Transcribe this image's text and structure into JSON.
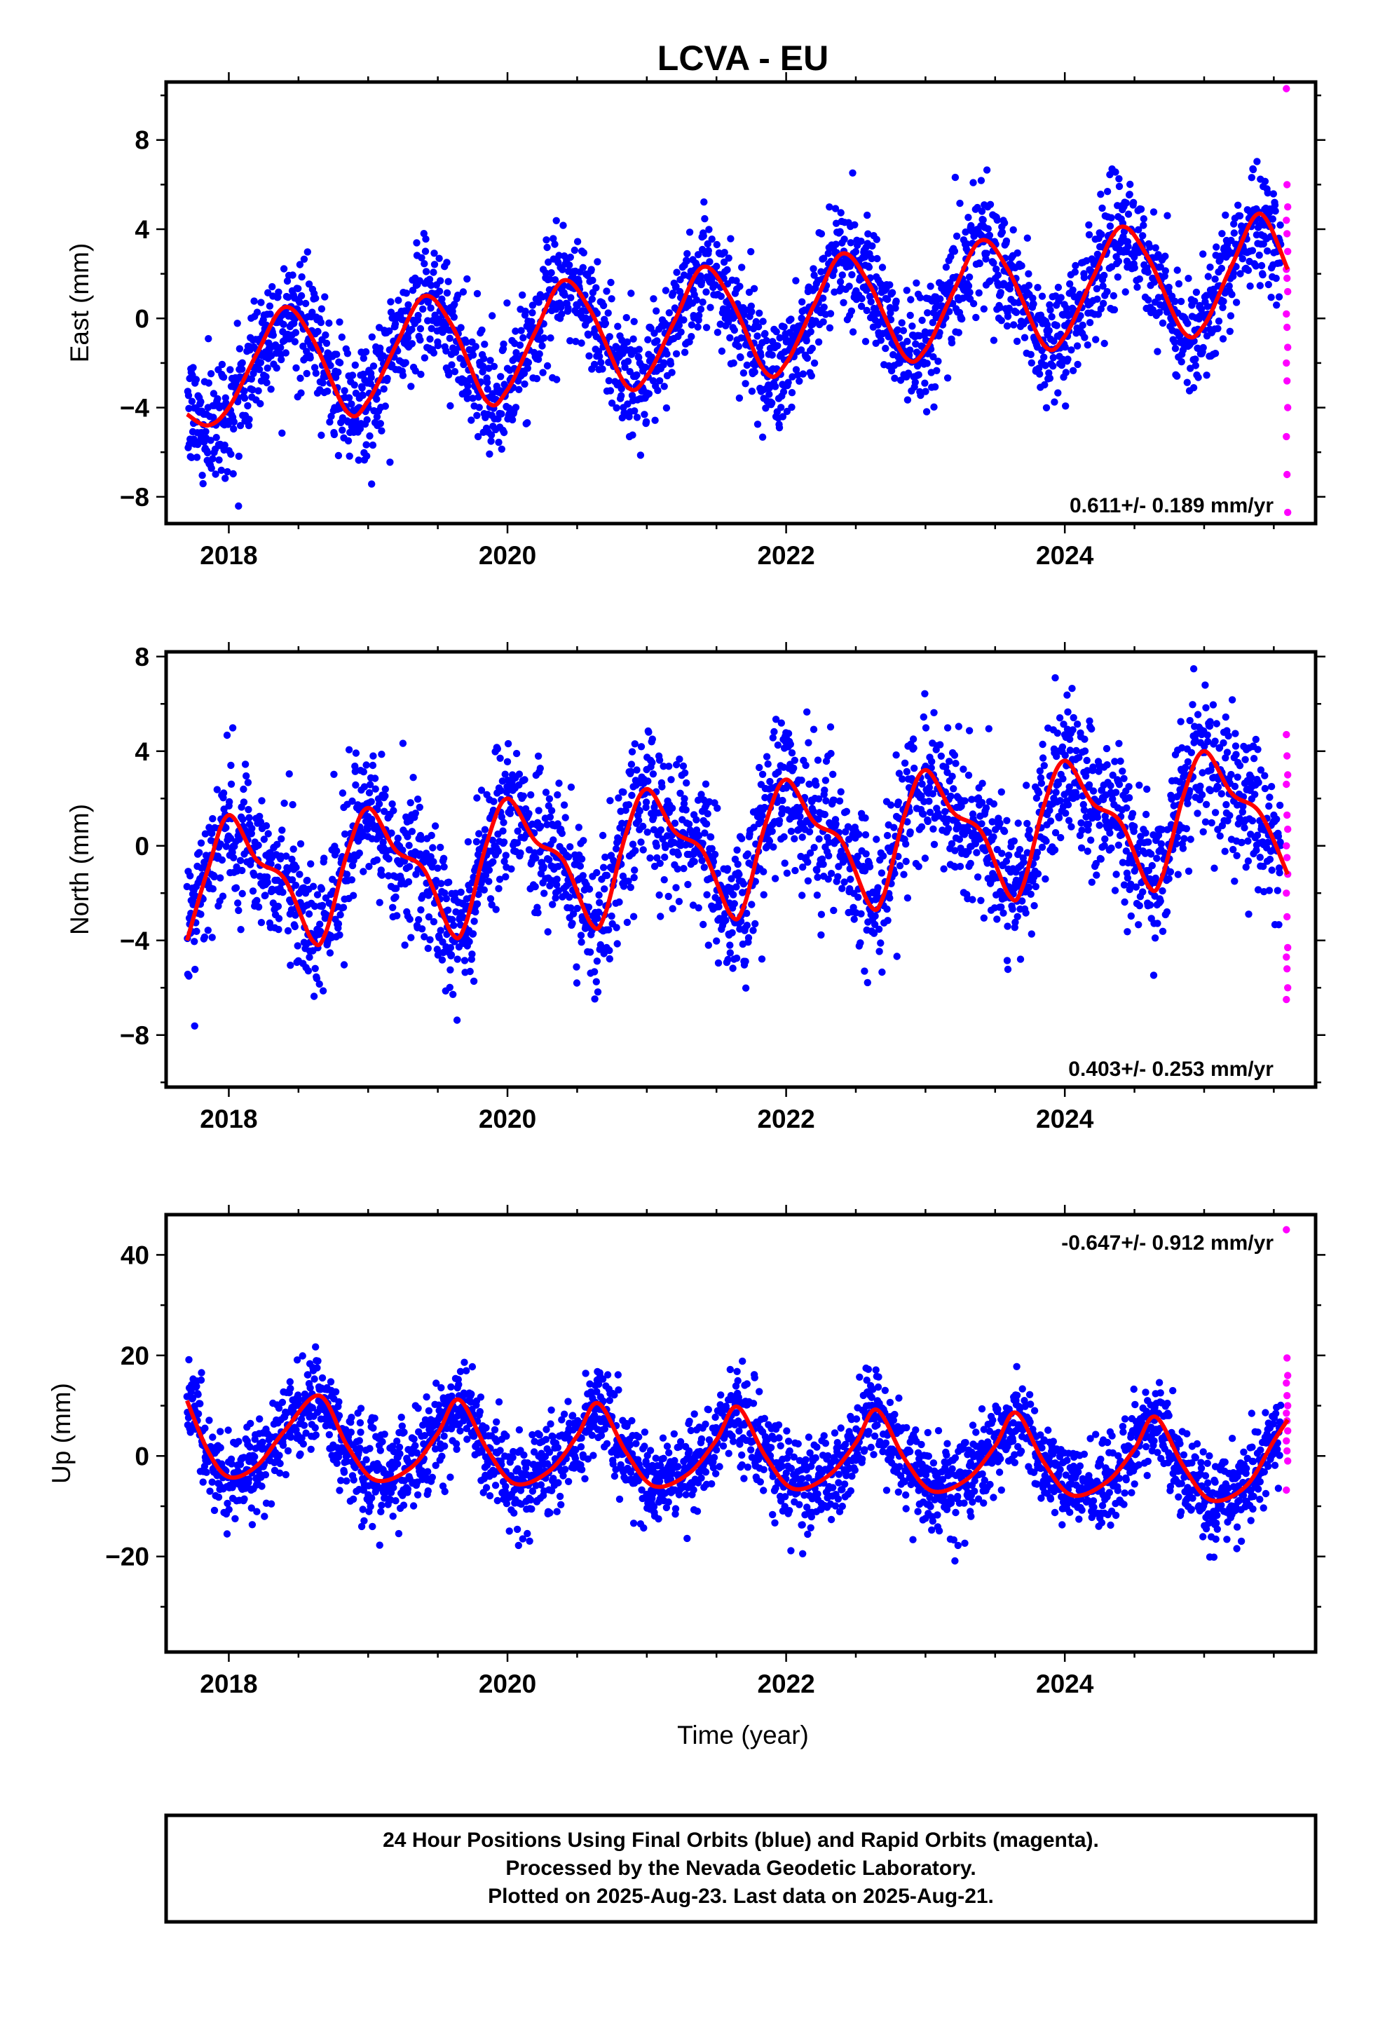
{
  "title": "LCVA - EU",
  "colors": {
    "final": "#0000ff",
    "rapid": "#ff00ff",
    "model": "#ff0000",
    "frame": "#000000"
  },
  "xaxis": {
    "label": "Time (year)",
    "range": [
      2017.55,
      2025.8
    ],
    "ticks": [
      2018,
      2020,
      2022,
      2024
    ],
    "tick_labels": [
      "2018",
      "2020",
      "2022",
      "2024"
    ]
  },
  "footer": {
    "line1": "24 Hour Positions Using Final Orbits (blue) and Rapid Orbits (magenta).",
    "line2": "Processed by the Nevada Geodetic Laboratory.",
    "line3": "Plotted on 2025-Aug-23. Last data on 2025-Aug-21."
  },
  "chart_data": [
    {
      "type": "scatter",
      "ylabel": "East (mm)",
      "ylim": [
        -9.2,
        10.6
      ],
      "yticks": [
        -8,
        -4,
        0,
        4,
        8
      ],
      "ytick_labels": [
        "−8",
        "−4",
        "0",
        "4",
        "8"
      ],
      "rate": "0.611+/- 0.189 mm/yr",
      "rate_position": "bottom-right",
      "final_x_range": [
        2017.7,
        2025.55
      ],
      "rapid_x_range": [
        2025.55,
        2025.64
      ],
      "model": {
        "description": "trend + annual signal",
        "x": [
          2017.7,
          2017.85,
          2018.0,
          2018.2,
          2018.4,
          2018.6,
          2018.85,
          2019.0,
          2019.2,
          2019.4,
          2019.6,
          2019.85,
          2020.0,
          2020.2,
          2020.4,
          2020.6,
          2020.85,
          2021.0,
          2021.2,
          2021.4,
          2021.6,
          2021.85,
          2022.0,
          2022.2,
          2022.4,
          2022.6,
          2022.85,
          2023.0,
          2023.2,
          2023.4,
          2023.6,
          2023.85,
          2024.0,
          2024.2,
          2024.4,
          2024.6,
          2024.85,
          2025.0,
          2025.2,
          2025.4,
          2025.6
        ],
        "y": [
          -4.3,
          -4.8,
          -4.0,
          -1.6,
          0.5,
          -0.9,
          -4.2,
          -3.7,
          -1.2,
          1.0,
          -0.3,
          -3.7,
          -3.2,
          -0.6,
          1.7,
          0.3,
          -3.0,
          -2.6,
          -0.1,
          2.3,
          0.9,
          -2.4,
          -2.0,
          0.6,
          2.9,
          1.5,
          -1.7,
          -1.4,
          1.2,
          3.5,
          2.1,
          -1.2,
          -0.8,
          1.8,
          4.1,
          2.7,
          -0.6,
          -0.3,
          2.4,
          4.7,
          2.2
        ]
      },
      "annual": {
        "amplitude": 2.6,
        "peak_phase": 0.4
      },
      "trend": {
        "y2017_7": -2.0,
        "slope": 0.611
      },
      "scatter_noise": 1.3,
      "rapid_points": [
        10.3,
        6.0,
        5.0,
        4.4,
        3.8,
        3.0,
        2.2,
        1.8,
        1.2,
        0.2,
        -0.4,
        -1.3,
        -2.0,
        -2.8,
        -4.0,
        -5.3,
        -7.0,
        -8.7
      ]
    },
    {
      "type": "scatter",
      "ylabel": "North (mm)",
      "ylim": [
        -10.2,
        8.2
      ],
      "yticks": [
        -8,
        -4,
        0,
        4,
        8
      ],
      "ytick_labels": [
        "−8",
        "−4",
        "0",
        "4",
        "8"
      ],
      "rate": "0.403+/- 0.253 mm/yr",
      "rate_position": "bottom-right",
      "final_x_range": [
        2017.7,
        2025.55
      ],
      "rapid_x_range": [
        2025.55,
        2025.64
      ],
      "model": {
        "description": "trend + annual + semiannual signal",
        "x": [
          2017.7,
          2017.85,
          2018.0,
          2018.2,
          2018.4,
          2018.6,
          2018.7,
          2018.85,
          2019.0,
          2019.2,
          2019.4,
          2019.6,
          2019.7,
          2019.85,
          2020.0,
          2020.2,
          2020.4,
          2020.6,
          2020.7,
          2020.85,
          2021.0,
          2021.2,
          2021.4,
          2021.6,
          2021.7,
          2021.85,
          2022.0,
          2022.2,
          2022.4,
          2022.6,
          2022.7,
          2022.85,
          2023.0,
          2023.2,
          2023.4,
          2023.6,
          2023.7,
          2023.85,
          2024.0,
          2024.2,
          2024.4,
          2024.6,
          2024.7,
          2024.85,
          2025.0,
          2025.2,
          2025.4,
          2025.6
        ],
        "y": [
          -4.0,
          -1.0,
          1.3,
          -0.6,
          -1.4,
          -4.0,
          -3.6,
          -0.3,
          1.6,
          -0.2,
          -1.0,
          -3.7,
          -3.3,
          0.1,
          2.0,
          0.2,
          -0.6,
          -3.3,
          -2.9,
          0.5,
          2.4,
          0.6,
          -0.2,
          -2.9,
          -2.5,
          0.9,
          2.8,
          1.0,
          0.2,
          -2.5,
          -2.1,
          1.3,
          3.2,
          1.4,
          0.6,
          -2.1,
          -1.7,
          1.7,
          3.6,
          1.8,
          1.0,
          -1.7,
          -1.3,
          2.1,
          4.0,
          2.2,
          1.4,
          -1.2
        ]
      },
      "annual": {
        "amplitude": 2.3,
        "peak_phase": 0.0
      },
      "trend": {
        "y2017_7": -1.2,
        "slope": 0.403
      },
      "scatter_noise": 1.5,
      "rapid_points": [
        4.7,
        3.8,
        3.0,
        2.6,
        1.3,
        0.7,
        0.0,
        -0.5,
        -1.2,
        -2.0,
        -3.0,
        -4.3,
        -4.7,
        -5.2,
        -6.0,
        -6.5
      ]
    },
    {
      "type": "scatter",
      "ylabel": "Up (mm)",
      "ylim": [
        -39,
        48
      ],
      "yticks": [
        -20,
        0,
        20,
        40
      ],
      "ytick_labels": [
        "−20",
        "0",
        "20",
        "40"
      ],
      "rate": "-0.647+/- 0.912 mm/yr",
      "rate_position": "top-right",
      "final_x_range": [
        2017.7,
        2025.55
      ],
      "rapid_x_range": [
        2025.55,
        2025.64
      ],
      "model": {
        "description": "trend + annual signal",
        "x": [
          2017.7,
          2017.85,
          2018.0,
          2018.2,
          2018.4,
          2018.65,
          2018.85,
          2019.05,
          2019.3,
          2019.5,
          2019.65,
          2019.85,
          2020.05,
          2020.3,
          2020.5,
          2020.65,
          2020.85,
          2021.05,
          2021.3,
          2021.5,
          2021.65,
          2021.85,
          2022.05,
          2022.3,
          2022.5,
          2022.65,
          2022.85,
          2023.05,
          2023.3,
          2023.5,
          2023.65,
          2023.85,
          2024.05,
          2024.3,
          2024.5,
          2024.65,
          2024.85,
          2025.05,
          2025.3,
          2025.5,
          2025.6
        ],
        "y": [
          11.0,
          1.0,
          -4.2,
          -2.0,
          5.0,
          12.0,
          2.0,
          -4.8,
          -2.5,
          4.5,
          11.2,
          1.5,
          -5.5,
          -3.0,
          4.0,
          10.5,
          0.8,
          -6.0,
          -3.5,
          3.2,
          9.8,
          0.0,
          -6.5,
          -4.0,
          2.6,
          9.2,
          -0.6,
          -7.0,
          -4.6,
          2.0,
          8.6,
          -1.3,
          -7.8,
          -5.2,
          1.4,
          7.8,
          -2.0,
          -8.8,
          -6.0,
          3.0,
          7.2
        ]
      },
      "annual": {
        "amplitude": 8.0,
        "peak_phase": 0.65
      },
      "trend": {
        "y2017_7": 2.5,
        "slope": -0.647
      },
      "scatter_noise": 4.5,
      "rapid_points": [
        45.0,
        19.5,
        16.0,
        14.5,
        12.0,
        10.0,
        8.5,
        7.0,
        5.0,
        3.0,
        1.0,
        -1.0,
        -6.8
      ]
    }
  ]
}
